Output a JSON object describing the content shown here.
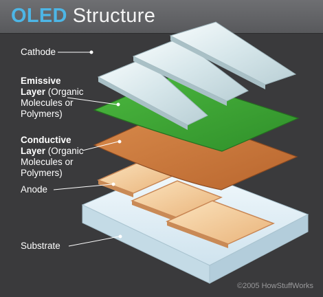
{
  "title": {
    "accent": "OLED",
    "rest": "Structure"
  },
  "labels": {
    "cathode": "Cathode",
    "emissive_bold": "Emissive",
    "emissive_line2_bold": "Layer",
    "emissive_line2_rest": " (Organic",
    "emissive_line3": "Molecules or",
    "emissive_line4": "Polymers)",
    "conductive_bold": "Conductive",
    "conductive_line2_bold": "Layer",
    "conductive_line2_rest": " (Organic",
    "conductive_line3": "Molecules or",
    "conductive_line4": "Polymers)",
    "anode": "Anode",
    "substrate": "Substrate"
  },
  "copyright": "©2005 HowStuffWorks",
  "colors": {
    "background": "#3a3a3c",
    "title_accent": "#4db6e6",
    "emissive": "#3fa535",
    "conductive": "#c9763a",
    "anode": "#f2c98c",
    "cathode": "#dce9ec",
    "substrate": "#e6f2f8"
  }
}
